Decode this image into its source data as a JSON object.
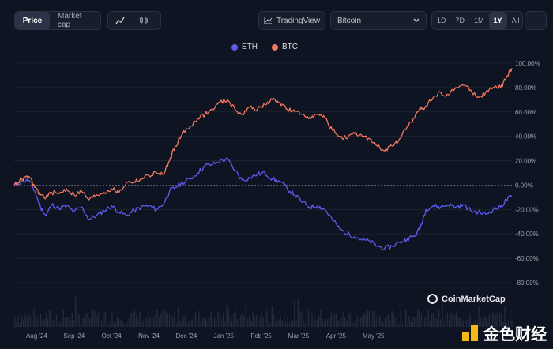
{
  "toolbar": {
    "tabs": [
      {
        "label": "Price",
        "active": true
      },
      {
        "label": "Market cap",
        "active": false
      }
    ],
    "chart_icons": [
      "line-chart-icon",
      "candlestick-icon"
    ],
    "tradingview_label": "TradingView",
    "asset_select": "Bitcoin",
    "ranges": [
      "1D",
      "7D",
      "1M",
      "1Y",
      "All"
    ],
    "active_range": "1Y",
    "more_label": "···"
  },
  "branding": {
    "coinmarketcap": "CoinMarketCap",
    "watermark": "金色财经"
  },
  "colors": {
    "eth": "#5b5bf0",
    "btc": "#f4775e",
    "background": "#0e1421"
  },
  "chart_data": {
    "type": "line",
    "xlabel": "",
    "ylabel": "",
    "ylim": [
      -80,
      100
    ],
    "yticks": [
      "100.00%",
      "80.00%",
      "60.00%",
      "40.00%",
      "20.00%",
      "0.00%",
      "-20.00%",
      "-40.00%",
      "-60.00%",
      "-80.00%"
    ],
    "xticks": [
      "Aug '24",
      "Sep '24",
      "Oct '24",
      "Nov '24",
      "Dec '24",
      "Jan '25",
      "Feb '25",
      "Mar '25",
      "Apr '25",
      "May '25"
    ],
    "legend_position": "top-center",
    "x_axis": "month index from start (0 = start of period, ~late Jul '24)",
    "series": [
      {
        "name": "ETH",
        "color": "#5b5bf0",
        "points": [
          [
            0,
            0
          ],
          [
            0.2,
            3
          ],
          [
            0.4,
            4
          ],
          [
            0.55,
            -5
          ],
          [
            0.7,
            -18
          ],
          [
            0.85,
            -25
          ],
          [
            1.0,
            -16
          ],
          [
            1.2,
            -19
          ],
          [
            1.4,
            -17
          ],
          [
            1.6,
            -22
          ],
          [
            1.8,
            -18
          ],
          [
            2.0,
            -28
          ],
          [
            2.2,
            -25
          ],
          [
            2.4,
            -21
          ],
          [
            2.6,
            -17
          ],
          [
            2.8,
            -22
          ],
          [
            3.0,
            -25
          ],
          [
            3.2,
            -21
          ],
          [
            3.4,
            -18
          ],
          [
            3.6,
            -17
          ],
          [
            3.8,
            -20
          ],
          [
            4.0,
            -15
          ],
          [
            4.15,
            -5
          ],
          [
            4.3,
            -2
          ],
          [
            4.5,
            2
          ],
          [
            4.7,
            5
          ],
          [
            4.9,
            10
          ],
          [
            5.1,
            16
          ],
          [
            5.3,
            17
          ],
          [
            5.5,
            20
          ],
          [
            5.7,
            21
          ],
          [
            5.9,
            12
          ],
          [
            6.1,
            4
          ],
          [
            6.3,
            6
          ],
          [
            6.5,
            9
          ],
          [
            6.7,
            10
          ],
          [
            6.9,
            5
          ],
          [
            7.1,
            3
          ],
          [
            7.3,
            -3
          ],
          [
            7.5,
            -8
          ],
          [
            7.7,
            -14
          ],
          [
            7.9,
            -18
          ],
          [
            8.1,
            -17
          ],
          [
            8.3,
            -20
          ],
          [
            8.5,
            -28
          ],
          [
            8.7,
            -36
          ],
          [
            8.9,
            -40
          ],
          [
            9.1,
            -42
          ],
          [
            9.3,
            -45
          ],
          [
            9.5,
            -46
          ],
          [
            9.7,
            -50
          ],
          [
            9.9,
            -52
          ],
          [
            10.1,
            -50
          ],
          [
            10.3,
            -47
          ],
          [
            10.5,
            -44
          ],
          [
            10.7,
            -42
          ],
          [
            10.85,
            -35
          ],
          [
            11.0,
            -20
          ],
          [
            11.2,
            -17
          ],
          [
            11.4,
            -18
          ],
          [
            11.6,
            -16
          ],
          [
            11.8,
            -18
          ],
          [
            12.0,
            -16
          ],
          [
            12.2,
            -21
          ],
          [
            12.4,
            -22
          ],
          [
            12.6,
            -24
          ],
          [
            12.8,
            -20
          ],
          [
            13.0,
            -18
          ],
          [
            13.15,
            -12
          ],
          [
            13.3,
            -9
          ]
        ]
      },
      {
        "name": "BTC",
        "color": "#f4775e",
        "points": [
          [
            0,
            0
          ],
          [
            0.2,
            5
          ],
          [
            0.4,
            7
          ],
          [
            0.55,
            -2
          ],
          [
            0.7,
            -8
          ],
          [
            0.85,
            -10
          ],
          [
            1.0,
            -6
          ],
          [
            1.2,
            -7
          ],
          [
            1.4,
            -3
          ],
          [
            1.6,
            -8
          ],
          [
            1.8,
            -5
          ],
          [
            2.0,
            -12
          ],
          [
            2.2,
            -8
          ],
          [
            2.4,
            -6
          ],
          [
            2.6,
            -3
          ],
          [
            2.8,
            -6
          ],
          [
            3.0,
            2
          ],
          [
            3.2,
            3
          ],
          [
            3.4,
            5
          ],
          [
            3.6,
            8
          ],
          [
            3.8,
            10
          ],
          [
            4.0,
            9
          ],
          [
            4.15,
            20
          ],
          [
            4.3,
            32
          ],
          [
            4.5,
            42
          ],
          [
            4.7,
            48
          ],
          [
            4.9,
            55
          ],
          [
            5.1,
            58
          ],
          [
            5.3,
            62
          ],
          [
            5.5,
            68
          ],
          [
            5.7,
            70
          ],
          [
            5.9,
            62
          ],
          [
            6.1,
            58
          ],
          [
            6.3,
            64
          ],
          [
            6.5,
            62
          ],
          [
            6.7,
            66
          ],
          [
            6.9,
            70
          ],
          [
            7.1,
            68
          ],
          [
            7.3,
            62
          ],
          [
            7.5,
            60
          ],
          [
            7.7,
            58
          ],
          [
            7.9,
            56
          ],
          [
            8.1,
            58
          ],
          [
            8.3,
            55
          ],
          [
            8.5,
            45
          ],
          [
            8.7,
            40
          ],
          [
            8.9,
            38
          ],
          [
            9.1,
            42
          ],
          [
            9.3,
            40
          ],
          [
            9.5,
            38
          ],
          [
            9.7,
            32
          ],
          [
            9.9,
            28
          ],
          [
            10.1,
            32
          ],
          [
            10.3,
            38
          ],
          [
            10.5,
            48
          ],
          [
            10.7,
            55
          ],
          [
            10.85,
            62
          ],
          [
            11.0,
            65
          ],
          [
            11.2,
            72
          ],
          [
            11.4,
            76
          ],
          [
            11.6,
            74
          ],
          [
            11.8,
            80
          ],
          [
            12.0,
            82
          ],
          [
            12.2,
            78
          ],
          [
            12.4,
            72
          ],
          [
            12.6,
            76
          ],
          [
            12.8,
            80
          ],
          [
            13.0,
            80
          ],
          [
            13.15,
            88
          ],
          [
            13.3,
            96
          ]
        ]
      }
    ],
    "volume": "volume bars along bottom (unlabeled)"
  }
}
